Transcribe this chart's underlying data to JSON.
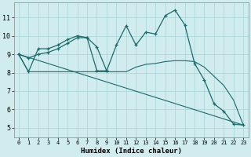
{
  "xlabel": "Humidex (Indice chaleur)",
  "background_color": "#d0ecee",
  "grid_color": "#a8d4d8",
  "line_color": "#1a6b6b",
  "xlim": [
    -0.5,
    23.5
  ],
  "ylim": [
    4.5,
    11.8
  ],
  "xticks": [
    0,
    1,
    2,
    3,
    4,
    5,
    6,
    7,
    8,
    9,
    10,
    11,
    12,
    13,
    14,
    15,
    16,
    17,
    18,
    19,
    20,
    21,
    22,
    23
  ],
  "yticks": [
    5,
    6,
    7,
    8,
    9,
    10,
    11
  ],
  "series1_x": [
    0,
    1,
    2,
    3,
    4,
    5,
    6,
    7,
    8,
    9,
    10,
    11,
    12,
    13,
    14,
    15,
    16,
    17,
    18,
    19,
    20,
    21,
    22,
    23
  ],
  "series1_y": [
    9.0,
    8.05,
    9.3,
    9.3,
    9.5,
    9.8,
    10.0,
    9.9,
    8.1,
    8.1,
    9.5,
    10.55,
    9.5,
    10.2,
    10.1,
    11.1,
    11.4,
    10.6,
    8.5,
    7.6,
    6.3,
    5.9,
    5.2,
    5.15
  ],
  "series2_x": [
    0,
    1,
    2,
    3,
    4,
    5,
    6,
    7,
    8,
    9
  ],
  "series2_y": [
    9.0,
    8.8,
    9.0,
    9.1,
    9.3,
    9.6,
    9.9,
    9.9,
    9.4,
    8.1
  ],
  "series3_x": [
    0,
    23
  ],
  "series3_y": [
    9.0,
    5.15
  ],
  "series4_x": [
    0,
    1,
    2,
    3,
    4,
    5,
    6,
    7,
    8,
    9,
    10,
    11,
    12,
    13,
    14,
    15,
    16,
    17,
    18,
    19,
    20,
    21,
    22,
    23
  ],
  "series4_y": [
    9.0,
    8.05,
    8.05,
    8.05,
    8.05,
    8.05,
    8.05,
    8.05,
    8.05,
    8.05,
    8.05,
    8.05,
    8.3,
    8.45,
    8.5,
    8.6,
    8.65,
    8.65,
    8.6,
    8.3,
    7.8,
    7.3,
    6.5,
    5.15
  ]
}
